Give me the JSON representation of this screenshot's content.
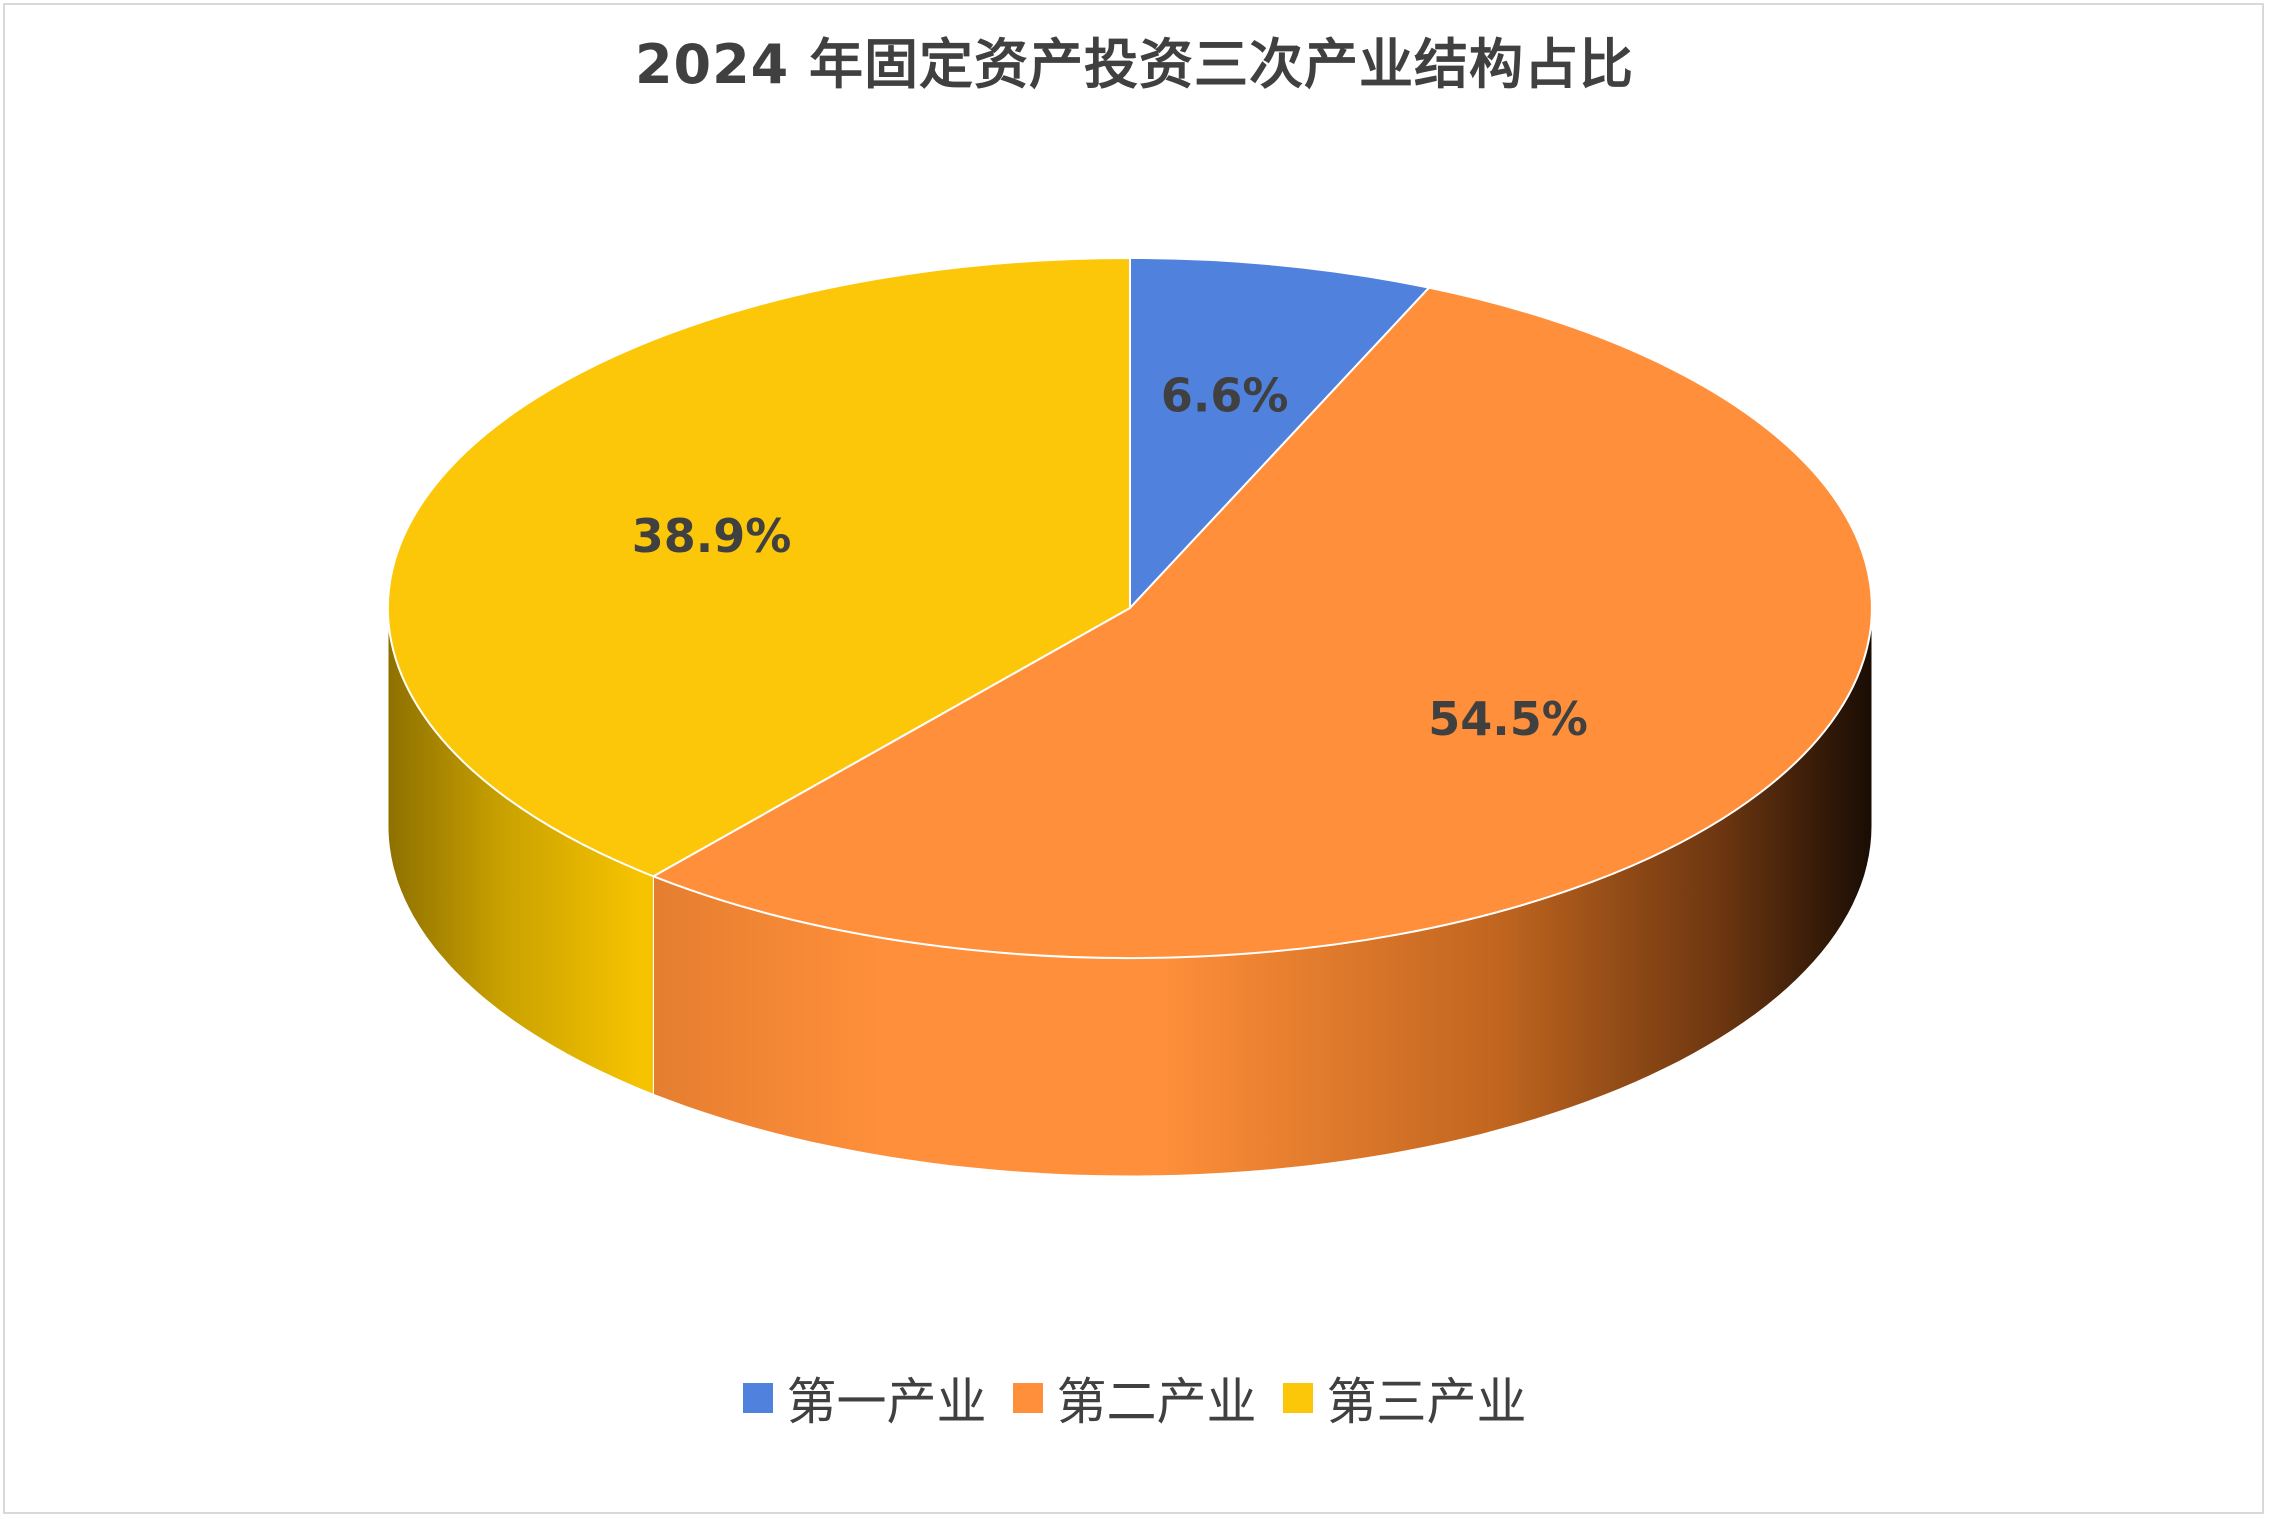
{
  "chart_data": {
    "type": "pie",
    "title": "2024 年固定资产投资三次产业结构占比",
    "categories": [
      "第一产业",
      "第二产业",
      "第三产业"
    ],
    "values": [
      6.6,
      54.5,
      38.9
    ],
    "labels": [
      "6.6%",
      "54.5%",
      "38.9%"
    ],
    "colors": [
      "#4f81dd",
      "#ff8f3a",
      "#fcc709"
    ],
    "legend_position": "bottom",
    "style": "3d"
  }
}
